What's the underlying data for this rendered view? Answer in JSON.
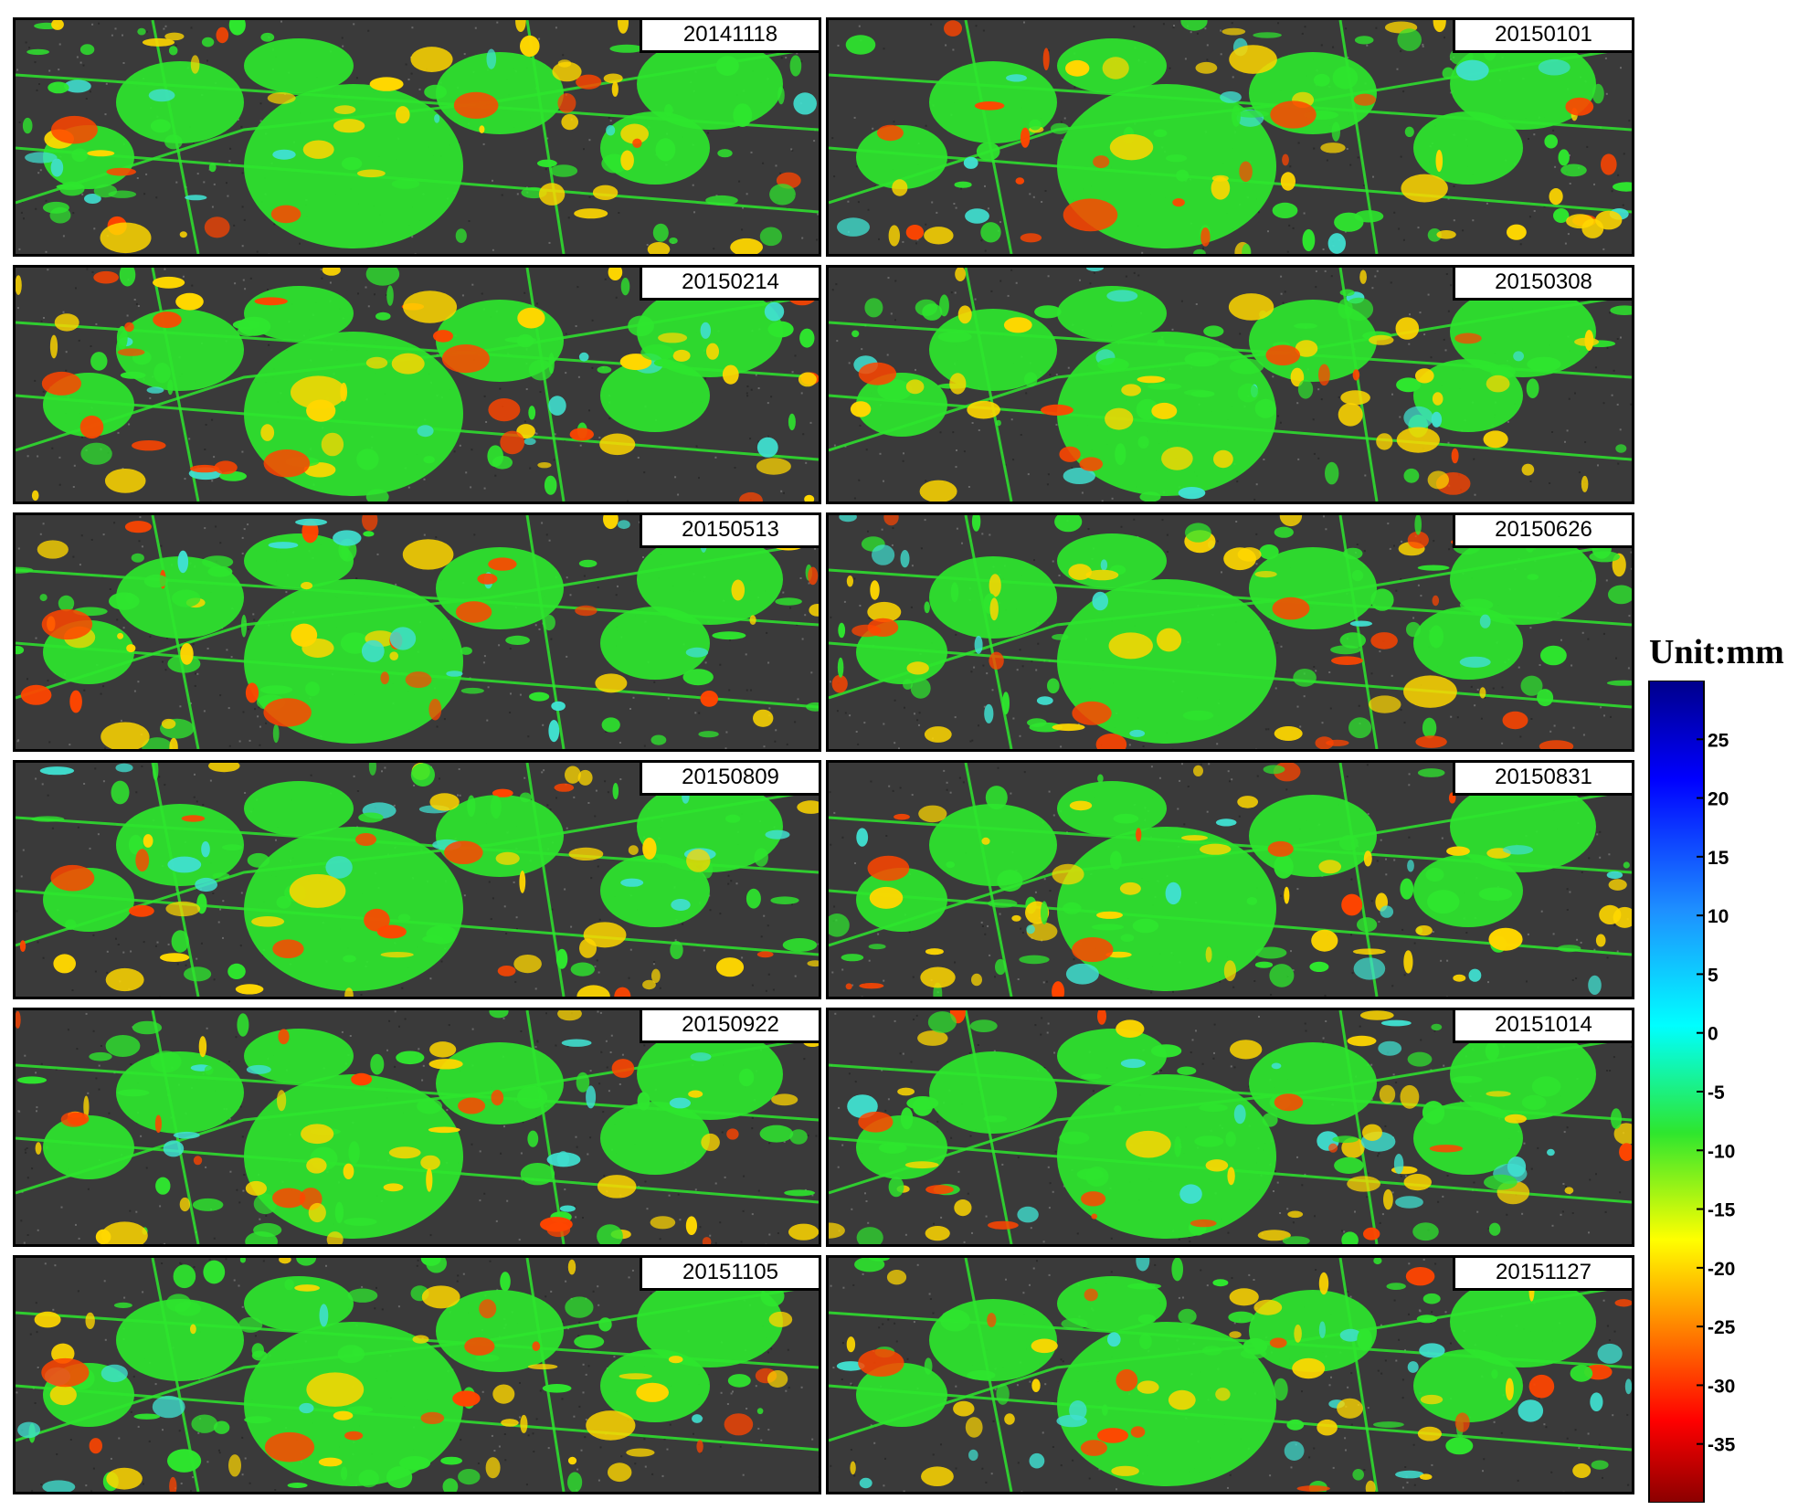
{
  "panels": [
    {
      "date": "20141118"
    },
    {
      "date": "20150101"
    },
    {
      "date": "20150214"
    },
    {
      "date": "20150308"
    },
    {
      "date": "20150513"
    },
    {
      "date": "20150626"
    },
    {
      "date": "20150809"
    },
    {
      "date": "20150831"
    },
    {
      "date": "20150922"
    },
    {
      "date": "20151014"
    },
    {
      "date": "20151105"
    },
    {
      "date": "20151127"
    }
  ],
  "colorbar": {
    "title": "Unit:mm",
    "ticks": [
      25,
      20,
      15,
      10,
      5,
      0,
      -5,
      -10,
      -15,
      -20,
      -25,
      -30,
      -35
    ],
    "range": [
      -40,
      30
    ],
    "colors": {
      "dark_red": "#8b0000",
      "red": "#ff0000",
      "orange": "#ff8c00",
      "yellow": "#ffff00",
      "green": "#2ee62e",
      "cyan": "#00ffff",
      "sky_blue": "#1e90ff",
      "blue": "#0000ff",
      "navy": "#00008b"
    }
  },
  "map_colors": {
    "background": "#3a3a3a",
    "stable": "#2ee62e",
    "moderate": "#ffd700",
    "strong": "#ff4500",
    "uplift": "#40e0d0"
  }
}
